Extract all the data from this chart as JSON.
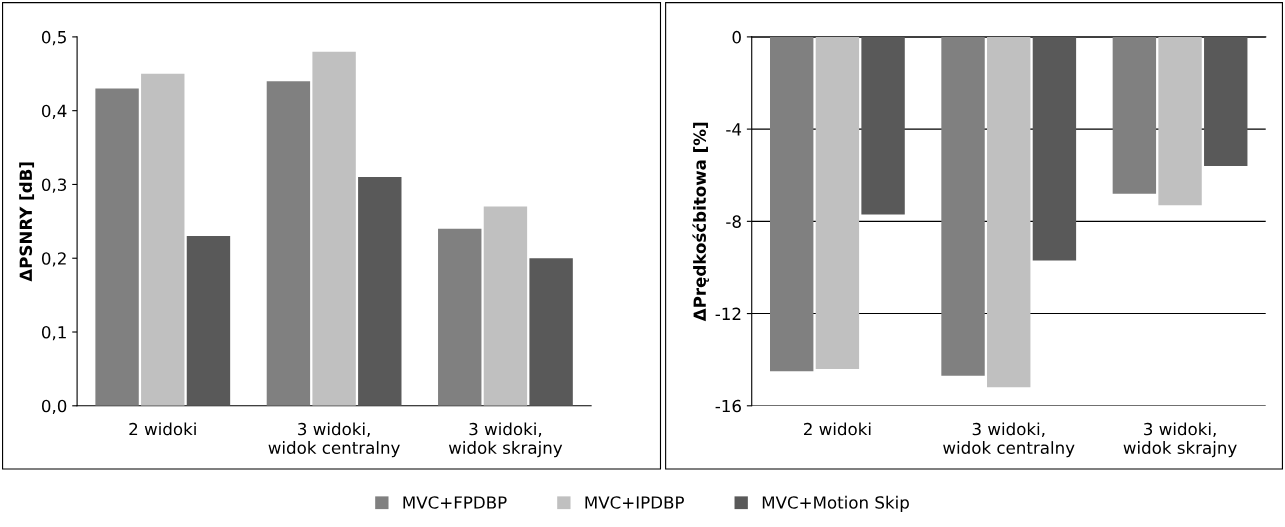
{
  "chart_data": [
    {
      "type": "bar",
      "ylabel": "ΔPSNRY [dB]",
      "categories": [
        "2 widoki",
        "3 widoki,\nwidok centralny",
        "3 widoki,\nwidok skrajny"
      ],
      "series": [
        {
          "name": "MVC+FPDBP",
          "color": "#808080",
          "values": [
            0.43,
            0.44,
            0.24
          ]
        },
        {
          "name": "MVC+IPDBP",
          "color": "#c0c0c0",
          "values": [
            0.45,
            0.48,
            0.27
          ]
        },
        {
          "name": "MVC+Motion Skip",
          "color": "#595959",
          "values": [
            0.23,
            0.31,
            0.2
          ]
        }
      ],
      "ylim": [
        0,
        0.5
      ],
      "yticks": [
        {
          "value": 0,
          "label": "0,0"
        },
        {
          "value": 0.1,
          "label": "0,1"
        },
        {
          "value": 0.2,
          "label": "0,2"
        },
        {
          "value": 0.3,
          "label": "0,3"
        },
        {
          "value": 0.4,
          "label": "0,4"
        },
        {
          "value": 0.5,
          "label": "0,5"
        }
      ],
      "grid": false,
      "legend": "bottom"
    },
    {
      "type": "bar",
      "ylabel": "ΔPrędkośćbitowa [%]",
      "categories": [
        "2 widoki",
        "3 widoki,\nwidok centralny",
        "3 widoki,\nwidok skrajny"
      ],
      "series": [
        {
          "color": "#808080",
          "values": [
            -14.5,
            -14.7,
            -6.8
          ]
        },
        {
          "color": "#c0c0c0",
          "values": [
            -14.4,
            -15.2,
            -7.3
          ]
        },
        {
          "color": "#595959",
          "values": [
            -7.7,
            -9.7,
            -5.6
          ]
        }
      ],
      "ylim": [
        -16,
        0
      ],
      "yticks": [
        -16,
        -12,
        -8,
        -4,
        0
      ],
      "grid": "y"
    }
  ]
}
